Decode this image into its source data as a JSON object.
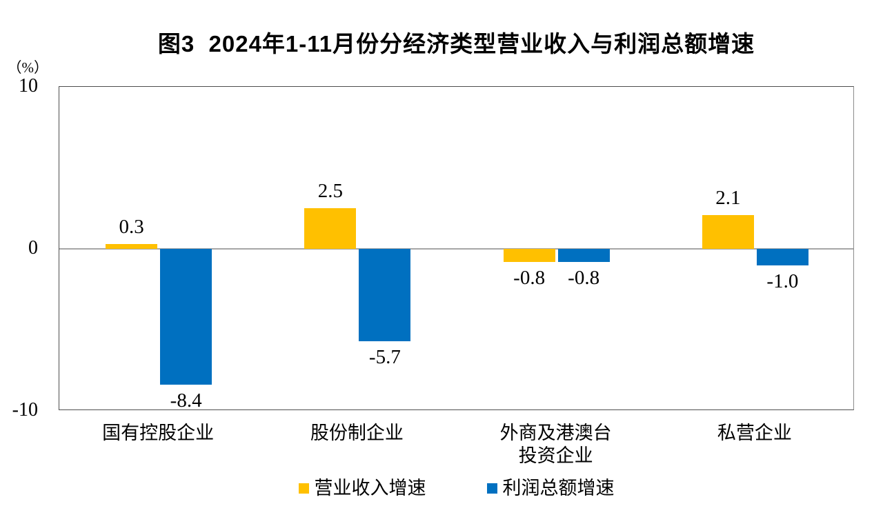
{
  "chart_data": {
    "type": "bar",
    "title": "图3  2024年1-11月份分经济类型营业收入与利润总额增速",
    "unit_label": "（%）",
    "categories": [
      "国有控股企业",
      "股份制企业",
      "外商及港澳台\n投资企业",
      "私营企业"
    ],
    "series": [
      {
        "name": "营业收入增速",
        "color": "#FFC000",
        "values": [
          0.3,
          2.5,
          -0.8,
          2.1
        ],
        "labels": [
          "0.3",
          "2.5",
          "-0.8",
          "2.1"
        ]
      },
      {
        "name": "利润总额增速",
        "color": "#0070C0",
        "values": [
          -8.4,
          -5.7,
          -0.8,
          -1.0
        ],
        "labels": [
          "-8.4",
          "-5.7",
          "-0.8",
          "-1.0"
        ]
      }
    ],
    "ylim": [
      -10,
      10
    ],
    "yticks": [
      {
        "value": 10,
        "label": "10"
      },
      {
        "value": 0,
        "label": "0"
      },
      {
        "value": -10,
        "label": "-10"
      }
    ],
    "grid": false,
    "legend_position": "bottom",
    "colors": {
      "zero_line": "#A6A6A6",
      "plot_border": "#4D4D4D",
      "text": "#000000"
    }
  }
}
